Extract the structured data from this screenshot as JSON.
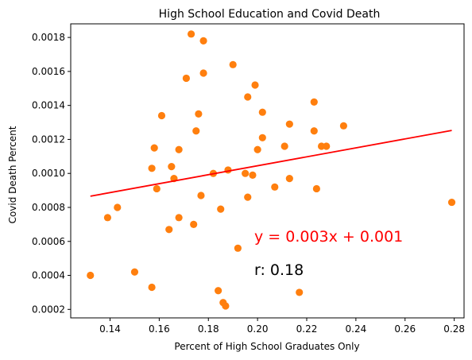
{
  "chart_data": {
    "type": "scatter",
    "title": "High School Education and Covid Death",
    "xlabel": "Percent of High School Graduates Only",
    "ylabel": "Covid Death Percent",
    "xlim": [
      0.124,
      0.284
    ],
    "ylim": [
      0.00015,
      0.00188
    ],
    "xticks": [
      0.14,
      0.16,
      0.18,
      0.2,
      0.22,
      0.24,
      0.26,
      0.28
    ],
    "yticks": [
      0.0002,
      0.0004,
      0.0006,
      0.0008,
      0.001,
      0.0012,
      0.0014,
      0.0016,
      0.0018
    ],
    "xtick_labels": [
      "0.14",
      "0.16",
      "0.18",
      "0.20",
      "0.22",
      "0.24",
      "0.26",
      "0.28"
    ],
    "ytick_labels": [
      "0.0002",
      "0.0004",
      "0.0006",
      "0.0008",
      "0.0010",
      "0.0012",
      "0.0014",
      "0.0016",
      "0.0018"
    ],
    "grid": false,
    "point_color": "#ff7f0e",
    "line_color": "#ff0000",
    "points": [
      [
        0.132,
        0.0004
      ],
      [
        0.139,
        0.00074
      ],
      [
        0.143,
        0.0008
      ],
      [
        0.15,
        0.00042
      ],
      [
        0.157,
        0.00033
      ],
      [
        0.157,
        0.00103
      ],
      [
        0.158,
        0.00115
      ],
      [
        0.159,
        0.00091
      ],
      [
        0.161,
        0.00134
      ],
      [
        0.164,
        0.00067
      ],
      [
        0.165,
        0.00104
      ],
      [
        0.166,
        0.00097
      ],
      [
        0.168,
        0.00114
      ],
      [
        0.168,
        0.00074
      ],
      [
        0.171,
        0.00156
      ],
      [
        0.173,
        0.00182
      ],
      [
        0.174,
        0.0007
      ],
      [
        0.175,
        0.00125
      ],
      [
        0.176,
        0.00135
      ],
      [
        0.177,
        0.00087
      ],
      [
        0.178,
        0.00178
      ],
      [
        0.178,
        0.00159
      ],
      [
        0.182,
        0.001
      ],
      [
        0.184,
        0.00031
      ],
      [
        0.185,
        0.00079
      ],
      [
        0.186,
        0.00024
      ],
      [
        0.187,
        0.00022
      ],
      [
        0.188,
        0.00102
      ],
      [
        0.19,
        0.00164
      ],
      [
        0.192,
        0.00056
      ],
      [
        0.195,
        0.001
      ],
      [
        0.196,
        0.00086
      ],
      [
        0.196,
        0.00145
      ],
      [
        0.198,
        0.00099
      ],
      [
        0.199,
        0.00152
      ],
      [
        0.2,
        0.00114
      ],
      [
        0.202,
        0.00136
      ],
      [
        0.202,
        0.00121
      ],
      [
        0.207,
        0.00092
      ],
      [
        0.211,
        0.00116
      ],
      [
        0.213,
        0.00129
      ],
      [
        0.213,
        0.00097
      ],
      [
        0.217,
        0.0003
      ],
      [
        0.223,
        0.00125
      ],
      [
        0.223,
        0.00142
      ],
      [
        0.224,
        0.00091
      ],
      [
        0.226,
        0.00116
      ],
      [
        0.228,
        0.00116
      ],
      [
        0.235,
        0.00128
      ],
      [
        0.279,
        0.00083
      ]
    ],
    "regression": {
      "x": [
        0.132,
        0.279
      ],
      "y": [
        0.000866,
        0.001253
      ]
    },
    "annotations": {
      "equation": "y = 0.003x + 0.001",
      "r_value": "r: 0.18"
    }
  }
}
